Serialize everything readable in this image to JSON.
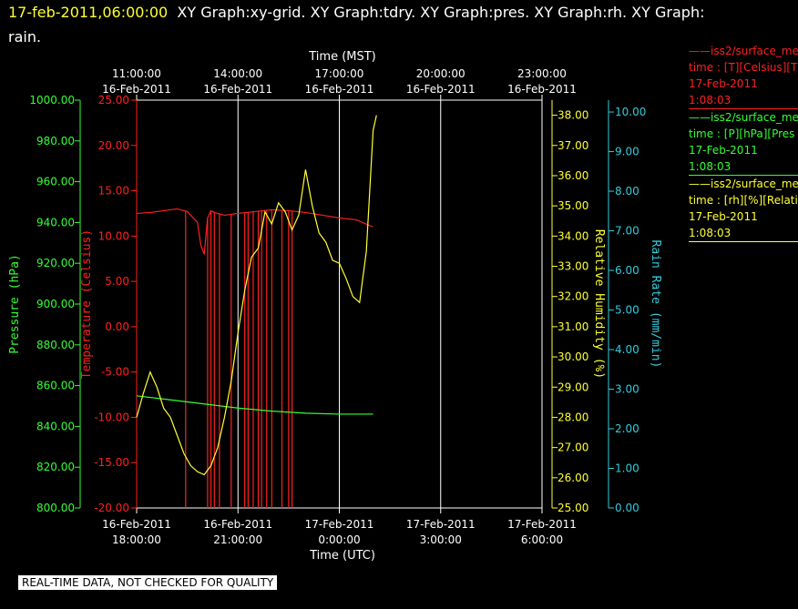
{
  "header": {
    "timestamp": "17-feb-2011,06:00:00",
    "titles_line1": "XY Graph:xy-grid.  XY Graph:tdry.  XY Graph:pres.  XY Graph:rh.  XY Graph:",
    "titles_line2": "rain."
  },
  "legend": [
    {
      "series": "——iss2/surface_me",
      "units": "time : [T][Celsius][T",
      "date": "17-Feb-2011",
      "time": "1:08:03",
      "color": "#ff2020"
    },
    {
      "series": "——iss2/surface_me",
      "units": "time : [P][hPa][Pres",
      "date": "17-Feb-2011",
      "time": "1:08:03",
      "color": "#33ff33"
    },
    {
      "series": "——iss2/surface_me",
      "units": "time : [rh][%][Relati",
      "date": "17-Feb-2011",
      "time": "1:08:03",
      "color": "#ffff33"
    }
  ],
  "footer": {
    "note": "REAL-TIME DATA, NOT CHECKED FOR QUALITY"
  },
  "chart_data": {
    "type": "line",
    "grid": true,
    "x_bottom": {
      "label": "Time (UTC)",
      "ticks": [
        [
          "16-Feb-2011",
          "18:00:00"
        ],
        [
          "16-Feb-2011",
          "21:00:00"
        ],
        [
          "17-Feb-2011",
          "0:00:00"
        ],
        [
          "17-Feb-2011",
          "3:00:00"
        ],
        [
          "17-Feb-2011",
          "6:00:00"
        ]
      ],
      "range": [
        "2011-02-16 18:00",
        "2011-02-17 06:00"
      ]
    },
    "x_top": {
      "label": "Time (MST)",
      "ticks": [
        [
          "11:00:00",
          "16-Feb-2011"
        ],
        [
          "14:00:00",
          "16-Feb-2011"
        ],
        [
          "17:00:00",
          "16-Feb-2011"
        ],
        [
          "20:00:00",
          "16-Feb-2011"
        ],
        [
          "23:00:00",
          "16-Feb-2011"
        ]
      ]
    },
    "axes": {
      "temperature": {
        "label": "Temperature (Celsius)",
        "color": "#ff2020",
        "ylim": [
          -20,
          25
        ],
        "ticks": [
          "25.00",
          "20.00",
          "15.00",
          "10.00",
          "5.00",
          "0.00",
          "-5.00",
          "-10.00",
          "-15.00",
          "-20.00"
        ]
      },
      "pressure": {
        "label": "Pressure (hPa)",
        "color": "#33ff33",
        "ylim": [
          800,
          1000
        ],
        "ticks": [
          "1000.00",
          "980.00",
          "960.00",
          "940.00",
          "920.00",
          "900.00",
          "880.00",
          "860.00",
          "840.00",
          "820.00",
          "800.00"
        ]
      },
      "humidity": {
        "label": "Relative Humidity (%)",
        "color": "#ffff33",
        "ylim": [
          25,
          38.5
        ],
        "ticks": [
          "38.00",
          "37.00",
          "36.00",
          "35.00",
          "34.00",
          "33.00",
          "32.00",
          "31.00",
          "30.00",
          "29.00",
          "28.00",
          "27.00",
          "26.00",
          "25.00"
        ]
      },
      "rain": {
        "label": "Rain Rate (mm/min)",
        "color": "#33ccdd",
        "ylim": [
          0,
          10.3
        ],
        "ticks": [
          "10.00",
          "9.00",
          "8.00",
          "7.00",
          "6.00",
          "5.00",
          "4.00",
          "3.00",
          "2.00",
          "1.00",
          "0.00"
        ]
      }
    },
    "series": [
      {
        "name": "tdry",
        "axis": "temperature",
        "color": "#ff2020",
        "x": [
          0,
          0.4,
          0.8,
          1.2,
          1.5,
          1.8,
          1.9,
          2.0,
          2.1,
          2.2,
          2.3,
          2.4,
          2.6,
          2.8,
          3.0,
          3.5,
          4.0,
          4.5,
          5.0,
          5.5,
          6.0,
          6.5,
          7.0
        ],
        "y": [
          12.5,
          12.6,
          12.8,
          13.0,
          12.7,
          11.5,
          9.0,
          8.0,
          12.0,
          12.8,
          12.6,
          12.5,
          12.3,
          12.4,
          12.5,
          12.7,
          12.9,
          12.8,
          12.6,
          12.3,
          12.0,
          11.8,
          11.0
        ],
        "spikes_x": [
          1.45,
          2.1,
          2.2,
          2.3,
          2.45,
          2.8,
          3.2,
          3.3,
          3.45,
          3.6,
          3.7,
          3.85,
          4.0,
          4.3,
          4.5,
          4.6
        ],
        "spikes_to": -20
      },
      {
        "name": "pres",
        "axis": "pressure",
        "color": "#33ff33",
        "x": [
          0,
          1,
          2,
          3,
          4,
          5,
          6,
          7
        ],
        "y": [
          855,
          853,
          851,
          849,
          847.5,
          846.5,
          846,
          846
        ]
      },
      {
        "name": "rh",
        "axis": "humidity",
        "color": "#ffff33",
        "x": [
          0,
          0.2,
          0.4,
          0.6,
          0.8,
          1.0,
          1.2,
          1.4,
          1.6,
          1.8,
          2.0,
          2.2,
          2.4,
          2.6,
          2.8,
          3.0,
          3.2,
          3.4,
          3.6,
          3.8,
          4.0,
          4.2,
          4.4,
          4.6,
          4.8,
          5.0,
          5.2,
          5.4,
          5.6,
          5.8,
          6.0,
          6.2,
          6.4,
          6.6,
          6.8,
          7.0,
          7.1
        ],
        "y": [
          28.0,
          28.8,
          29.5,
          29.0,
          28.3,
          28.0,
          27.4,
          26.8,
          26.4,
          26.2,
          26.1,
          26.4,
          27.0,
          28.0,
          29.2,
          30.8,
          32.2,
          33.3,
          33.6,
          34.8,
          34.4,
          35.1,
          34.8,
          34.2,
          34.7,
          36.2,
          35.0,
          34.1,
          33.8,
          33.2,
          33.1,
          32.6,
          32.0,
          31.8,
          33.5,
          37.5,
          38.0
        ]
      }
    ]
  }
}
